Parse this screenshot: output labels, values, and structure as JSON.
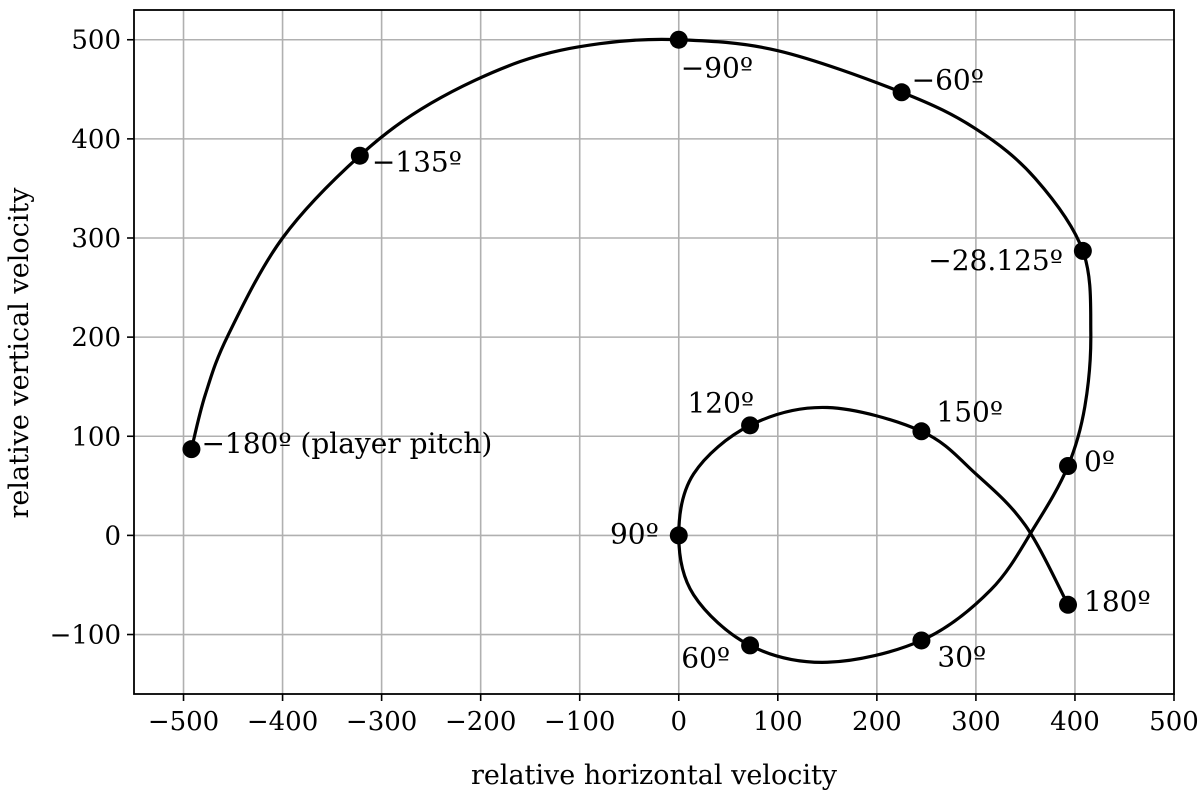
{
  "chart_data": {
    "type": "line",
    "title": "",
    "xlabel": "relative horizontal velocity",
    "ylabel": "relative vertical velocity",
    "xlim": [
      -550,
      500
    ],
    "ylim": [
      -160,
      530
    ],
    "grid": true,
    "xticks": [
      -500,
      -400,
      -300,
      -200,
      -100,
      0,
      100,
      200,
      300,
      400,
      500
    ],
    "yticks": [
      -100,
      0,
      100,
      200,
      300,
      400,
      500
    ],
    "xtick_labels": [
      "−500",
      "−400",
      "−300",
      "−200",
      "−100",
      "0",
      "100",
      "200",
      "300",
      "400",
      "500"
    ],
    "ytick_labels": [
      "−100",
      "0",
      "100",
      "200",
      "300",
      "400",
      "500"
    ],
    "series": [
      {
        "color": "#000000",
        "curve": [
          {
            "x": -492,
            "y": 87
          },
          {
            "x": -478,
            "y": 142
          },
          {
            "x": -455,
            "y": 202
          },
          {
            "x": -400,
            "y": 300
          },
          {
            "x": -322,
            "y": 383
          },
          {
            "x": -250,
            "y": 436
          },
          {
            "x": -160,
            "y": 478
          },
          {
            "x": -80,
            "y": 496
          },
          {
            "x": 0,
            "y": 500
          },
          {
            "x": 100,
            "y": 489
          },
          {
            "x": 225,
            "y": 447
          },
          {
            "x": 300,
            "y": 410
          },
          {
            "x": 360,
            "y": 360
          },
          {
            "x": 408,
            "y": 287
          },
          {
            "x": 416,
            "y": 205
          },
          {
            "x": 410,
            "y": 130
          },
          {
            "x": 393,
            "y": 70
          },
          {
            "x": 360,
            "y": 10
          },
          {
            "x": 315,
            "y": -55
          },
          {
            "x": 245,
            "y": -106
          },
          {
            "x": 150,
            "y": -128
          },
          {
            "x": 72,
            "y": -111
          },
          {
            "x": 15,
            "y": -60
          },
          {
            "x": 0,
            "y": 0
          },
          {
            "x": 15,
            "y": 62
          },
          {
            "x": 72,
            "y": 111
          },
          {
            "x": 150,
            "y": 129
          },
          {
            "x": 245,
            "y": 105
          },
          {
            "x": 300,
            "y": 62
          },
          {
            "x": 350,
            "y": 10
          },
          {
            "x": 393,
            "y": -70
          }
        ],
        "points": [
          {
            "x": -492,
            "y": 87,
            "label": "−180º (player pitch)",
            "anchor": "start",
            "dx": 10,
            "dy": 4
          },
          {
            "x": -322,
            "y": 383,
            "label": "−135º",
            "anchor": "start",
            "dx": 12,
            "dy": 16
          },
          {
            "x": 0,
            "y": 500,
            "label": "−90º",
            "anchor": "start",
            "dx": 2,
            "dy": 38
          },
          {
            "x": 225,
            "y": 447,
            "label": "−60º",
            "anchor": "start",
            "dx": 10,
            "dy": -3
          },
          {
            "x": 408,
            "y": 287,
            "label": "−28.125º",
            "anchor": "end",
            "dx": -20,
            "dy": 19
          },
          {
            "x": 393,
            "y": 70,
            "label": "0º",
            "anchor": "start",
            "dx": 16,
            "dy": 5
          },
          {
            "x": 245,
            "y": -106,
            "label": "30º",
            "anchor": "start",
            "dx": 16,
            "dy": 26
          },
          {
            "x": 72,
            "y": -111,
            "label": "60º",
            "anchor": "end",
            "dx": -20,
            "dy": 22
          },
          {
            "x": 0,
            "y": 0,
            "label": "90º",
            "anchor": "end",
            "dx": -20,
            "dy": 8
          },
          {
            "x": 72,
            "y": 111,
            "label": "120º",
            "anchor": "end",
            "dx": 4,
            "dy": -13
          },
          {
            "x": 245,
            "y": 105,
            "label": "150º",
            "anchor": "start",
            "dx": 15,
            "dy": -10
          },
          {
            "x": 393,
            "y": -70,
            "label": "180º",
            "anchor": "start",
            "dx": 16,
            "dy": 6
          }
        ]
      }
    ]
  }
}
